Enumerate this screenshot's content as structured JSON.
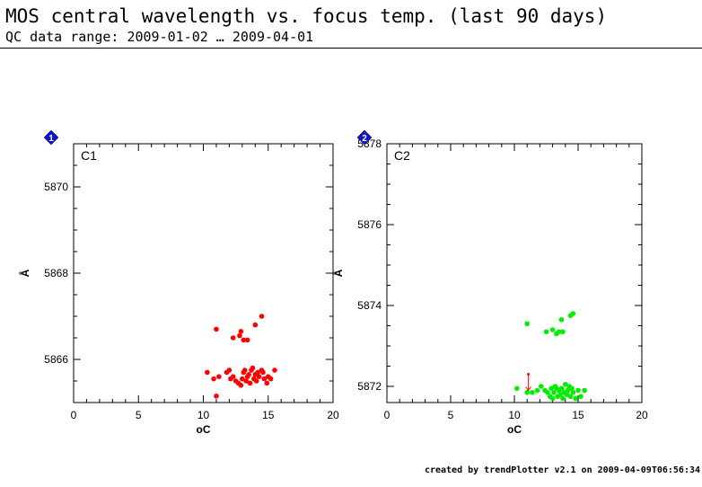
{
  "header": {
    "title": "MOS central wavelength vs. focus temp. (last 90 days)",
    "subtitle": "QC data range: 2009-01-02 … 2009-04-01"
  },
  "footer": {
    "text": "created by trendPlotter v2.1 on 2009-04-09T06:56:34"
  },
  "chart_data": [
    {
      "type": "scatter",
      "panel_label": "C1",
      "marker_label": "1",
      "marker_color": "#1010d0",
      "xlabel": "oC",
      "ylabel": "Å",
      "xlim": [
        0,
        20
      ],
      "ylim": [
        5865.0,
        5871.0
      ],
      "x_ticks": [
        0,
        5,
        10,
        15,
        20
      ],
      "y_ticks": [
        5866,
        5868,
        5870
      ],
      "grid": false,
      "series": [
        {
          "color": "#ff0000",
          "points": [
            [
              11.0,
              5866.7
            ],
            [
              12.3,
              5866.5
            ],
            [
              12.8,
              5866.55
            ],
            [
              13.1,
              5866.45
            ],
            [
              13.4,
              5866.45
            ],
            [
              14.0,
              5866.8
            ],
            [
              14.5,
              5867.0
            ],
            [
              12.9,
              5866.65
            ],
            [
              10.3,
              5865.7
            ],
            [
              10.8,
              5865.55
            ],
            [
              11.2,
              5865.6
            ],
            [
              11.0,
              5865.15
            ],
            [
              11.8,
              5865.7
            ],
            [
              12.0,
              5865.75
            ],
            [
              12.3,
              5865.6
            ],
            [
              12.5,
              5865.5
            ],
            [
              12.7,
              5865.45
            ],
            [
              12.9,
              5865.4
            ],
            [
              13.0,
              5865.55
            ],
            [
              13.1,
              5865.7
            ],
            [
              13.3,
              5865.5
            ],
            [
              13.4,
              5865.6
            ],
            [
              13.5,
              5865.65
            ],
            [
              13.6,
              5865.45
            ],
            [
              13.7,
              5865.75
            ],
            [
              13.8,
              5865.8
            ],
            [
              13.9,
              5865.55
            ],
            [
              14.0,
              5865.65
            ],
            [
              14.1,
              5865.5
            ],
            [
              14.2,
              5865.7
            ],
            [
              14.3,
              5865.6
            ],
            [
              14.5,
              5865.75
            ],
            [
              14.7,
              5865.55
            ],
            [
              14.9,
              5865.45
            ],
            [
              15.0,
              5865.6
            ],
            [
              15.2,
              5865.55
            ],
            [
              15.5,
              5865.75
            ],
            [
              13.2,
              5865.75
            ],
            [
              14.6,
              5865.7
            ],
            [
              12.1,
              5865.55
            ]
          ]
        }
      ]
    },
    {
      "type": "scatter",
      "panel_label": "C2",
      "marker_label": "2",
      "marker_color": "#1010d0",
      "xlabel": "oC",
      "ylabel": "Å",
      "xlim": [
        0,
        20
      ],
      "ylim": [
        5871.6,
        5878.0
      ],
      "x_ticks": [
        0,
        5,
        10,
        15,
        20
      ],
      "y_ticks": [
        5872,
        5874,
        5876,
        5878
      ],
      "grid": false,
      "series": [
        {
          "color": "#00ee00",
          "points": [
            [
              11.0,
              5873.55
            ],
            [
              12.5,
              5873.35
            ],
            [
              13.0,
              5873.4
            ],
            [
              13.3,
              5873.3
            ],
            [
              13.5,
              5873.35
            ],
            [
              13.8,
              5873.35
            ],
            [
              13.7,
              5873.65
            ],
            [
              14.4,
              5873.75
            ],
            [
              14.6,
              5873.8
            ],
            [
              10.2,
              5871.95
            ],
            [
              11.0,
              5871.85
            ],
            [
              11.4,
              5871.85
            ],
            [
              11.8,
              5871.9
            ],
            [
              12.1,
              5872.0
            ],
            [
              12.4,
              5871.9
            ],
            [
              12.6,
              5871.85
            ],
            [
              12.8,
              5871.75
            ],
            [
              12.9,
              5871.95
            ],
            [
              13.0,
              5871.7
            ],
            [
              13.1,
              5871.85
            ],
            [
              13.2,
              5872.0
            ],
            [
              13.4,
              5871.75
            ],
            [
              13.5,
              5871.9
            ],
            [
              13.6,
              5871.8
            ],
            [
              13.7,
              5871.95
            ],
            [
              13.8,
              5871.7
            ],
            [
              13.9,
              5871.85
            ],
            [
              14.0,
              5872.05
            ],
            [
              14.1,
              5871.8
            ],
            [
              14.2,
              5871.9
            ],
            [
              14.4,
              5871.75
            ],
            [
              14.5,
              5871.95
            ],
            [
              14.6,
              5871.85
            ],
            [
              14.8,
              5871.7
            ],
            [
              15.0,
              5871.9
            ],
            [
              15.2,
              5871.75
            ],
            [
              15.5,
              5871.9
            ],
            [
              13.3,
              5871.95
            ],
            [
              14.3,
              5872.0
            ]
          ]
        }
      ],
      "annotations": [
        {
          "type": "arrow",
          "x": 11.1,
          "y_from": 5872.3,
          "y_to": 5871.9,
          "color": "#ff0000"
        }
      ]
    }
  ]
}
